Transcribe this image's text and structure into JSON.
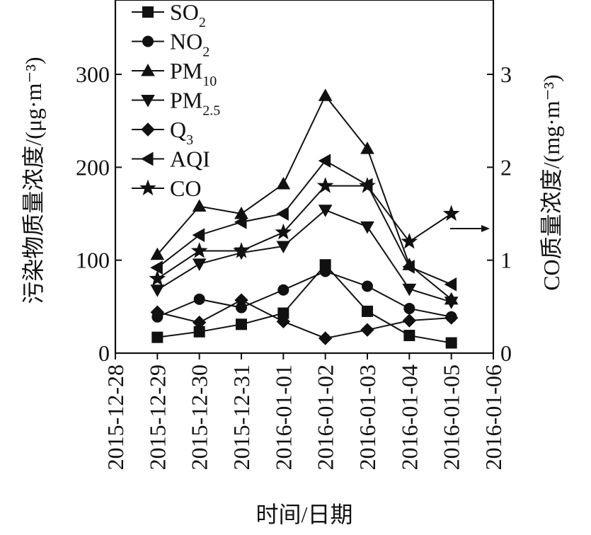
{
  "chart_data": {
    "type": "line",
    "title": "",
    "xlabel": "时间/日期",
    "ylabel_left": "污染物质量浓度/(μg·m⁻³)",
    "ylabel_right": "CO质量浓度/(mg·m⁻³)",
    "x_ticks": [
      "2015-12-28",
      "2015-12-29",
      "2015-12-30",
      "2015-12-31",
      "2016-01-01",
      "2016-01-02",
      "2016-01-03",
      "2016-01-04",
      "2016-01-05",
      "2016-01-06"
    ],
    "x": [
      "2015-12-29",
      "2015-12-30",
      "2015-12-31",
      "2016-01-01",
      "2016-01-02",
      "2016-01-03",
      "2016-01-04",
      "2016-01-05"
    ],
    "ylim_left": [
      0,
      380
    ],
    "yticks_left": [
      0,
      100,
      200,
      300
    ],
    "ylim_right": [
      0,
      3.8
    ],
    "yticks_right": [
      0,
      1,
      2,
      3
    ],
    "legend_position": "top-left",
    "series": [
      {
        "name": "SO2",
        "label_main": "SO",
        "label_sub": "2",
        "marker": "square",
        "axis": "left",
        "values": [
          17,
          23,
          31,
          43,
          95,
          45,
          19,
          11
        ]
      },
      {
        "name": "NO2",
        "label_main": "NO",
        "label_sub": "2",
        "marker": "circle",
        "axis": "left",
        "values": [
          39,
          58,
          49,
          68,
          88,
          72,
          48,
          39
        ]
      },
      {
        "name": "PM10",
        "label_main": "PM",
        "label_sub": "10",
        "marker": "triangle-up",
        "axis": "left",
        "values": [
          106,
          158,
          150,
          182,
          277,
          220,
          95,
          58
        ]
      },
      {
        "name": "PM2.5",
        "label_main": "PM",
        "label_sub": "2.5",
        "marker": "triangle-down",
        "axis": "left",
        "values": [
          68,
          96,
          108,
          115,
          154,
          136,
          69,
          55
        ]
      },
      {
        "name": "O3",
        "label_main": "Q",
        "label_sub": "3",
        "marker": "diamond",
        "axis": "left",
        "values": [
          44,
          33,
          57,
          34,
          16,
          25,
          35,
          38
        ]
      },
      {
        "name": "AQI",
        "label_main": "AQI",
        "label_sub": "",
        "marker": "triangle-left",
        "axis": "left",
        "values": [
          92,
          127,
          141,
          150,
          207,
          181,
          93,
          74
        ]
      },
      {
        "name": "CO",
        "label_main": "CO",
        "label_sub": "",
        "marker": "star",
        "axis": "right",
        "values": [
          0.8,
          1.1,
          1.1,
          1.3,
          1.8,
          1.8,
          1.2,
          1.5
        ]
      }
    ],
    "annotations": [
      {
        "type": "arrow",
        "points_to": "right-axis",
        "series": "CO"
      }
    ]
  }
}
